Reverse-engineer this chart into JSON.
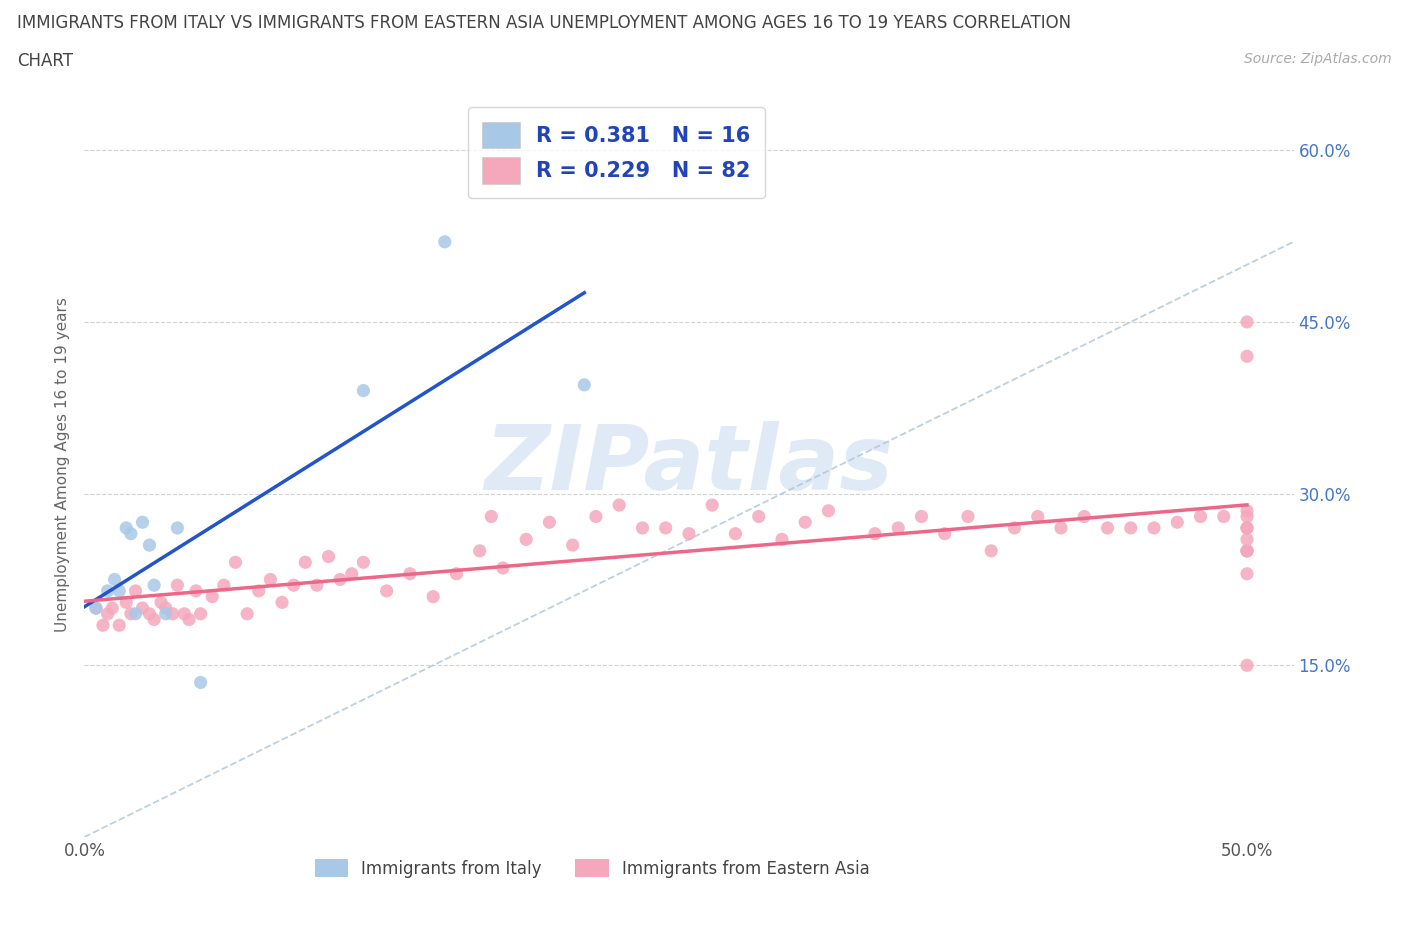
{
  "title_line1": "IMMIGRANTS FROM ITALY VS IMMIGRANTS FROM EASTERN ASIA UNEMPLOYMENT AMONG AGES 16 TO 19 YEARS CORRELATION",
  "title_line2": "CHART",
  "source": "Source: ZipAtlas.com",
  "ylabel": "Unemployment Among Ages 16 to 19 years",
  "xlim": [
    0.0,
    0.52
  ],
  "ylim": [
    0.0,
    0.65
  ],
  "italy_R": 0.381,
  "italy_N": 16,
  "eastern_asia_R": 0.229,
  "eastern_asia_N": 82,
  "italy_color": "#a8c8e8",
  "eastern_asia_color": "#f5a8bc",
  "italy_line_color": "#2255cc",
  "eastern_asia_line_color": "#ee6688",
  "diagonal_color": "#b0c8dc",
  "watermark_color": "#ccddf0",
  "italy_x": [
    0.005,
    0.01,
    0.013,
    0.015,
    0.018,
    0.02,
    0.022,
    0.025,
    0.028,
    0.03,
    0.035,
    0.04,
    0.05,
    0.12,
    0.155,
    0.215
  ],
  "italy_y": [
    0.2,
    0.215,
    0.225,
    0.215,
    0.27,
    0.265,
    0.195,
    0.275,
    0.255,
    0.22,
    0.195,
    0.27,
    0.135,
    0.39,
    0.52,
    0.395
  ],
  "eastern_asia_x": [
    0.005,
    0.008,
    0.01,
    0.012,
    0.015,
    0.018,
    0.02,
    0.022,
    0.025,
    0.028,
    0.03,
    0.033,
    0.035,
    0.038,
    0.04,
    0.043,
    0.045,
    0.048,
    0.05,
    0.055,
    0.06,
    0.065,
    0.07,
    0.075,
    0.08,
    0.085,
    0.09,
    0.095,
    0.1,
    0.105,
    0.11,
    0.115,
    0.12,
    0.13,
    0.14,
    0.15,
    0.16,
    0.17,
    0.175,
    0.18,
    0.19,
    0.2,
    0.21,
    0.22,
    0.23,
    0.24,
    0.25,
    0.26,
    0.27,
    0.28,
    0.29,
    0.3,
    0.31,
    0.32,
    0.34,
    0.35,
    0.36,
    0.37,
    0.38,
    0.39,
    0.4,
    0.41,
    0.42,
    0.43,
    0.44,
    0.45,
    0.46,
    0.47,
    0.48,
    0.49,
    0.5,
    0.5,
    0.5,
    0.5,
    0.5,
    0.5,
    0.5,
    0.5,
    0.5,
    0.5,
    0.5,
    0.5
  ],
  "eastern_asia_y": [
    0.2,
    0.185,
    0.195,
    0.2,
    0.185,
    0.205,
    0.195,
    0.215,
    0.2,
    0.195,
    0.19,
    0.205,
    0.2,
    0.195,
    0.22,
    0.195,
    0.19,
    0.215,
    0.195,
    0.21,
    0.22,
    0.24,
    0.195,
    0.215,
    0.225,
    0.205,
    0.22,
    0.24,
    0.22,
    0.245,
    0.225,
    0.23,
    0.24,
    0.215,
    0.23,
    0.21,
    0.23,
    0.25,
    0.28,
    0.235,
    0.26,
    0.275,
    0.255,
    0.28,
    0.29,
    0.27,
    0.27,
    0.265,
    0.29,
    0.265,
    0.28,
    0.26,
    0.275,
    0.285,
    0.265,
    0.27,
    0.28,
    0.265,
    0.28,
    0.25,
    0.27,
    0.28,
    0.27,
    0.28,
    0.27,
    0.27,
    0.27,
    0.275,
    0.28,
    0.28,
    0.27,
    0.28,
    0.285,
    0.27,
    0.23,
    0.15,
    0.26,
    0.45,
    0.42,
    0.25,
    0.25,
    0.25
  ]
}
